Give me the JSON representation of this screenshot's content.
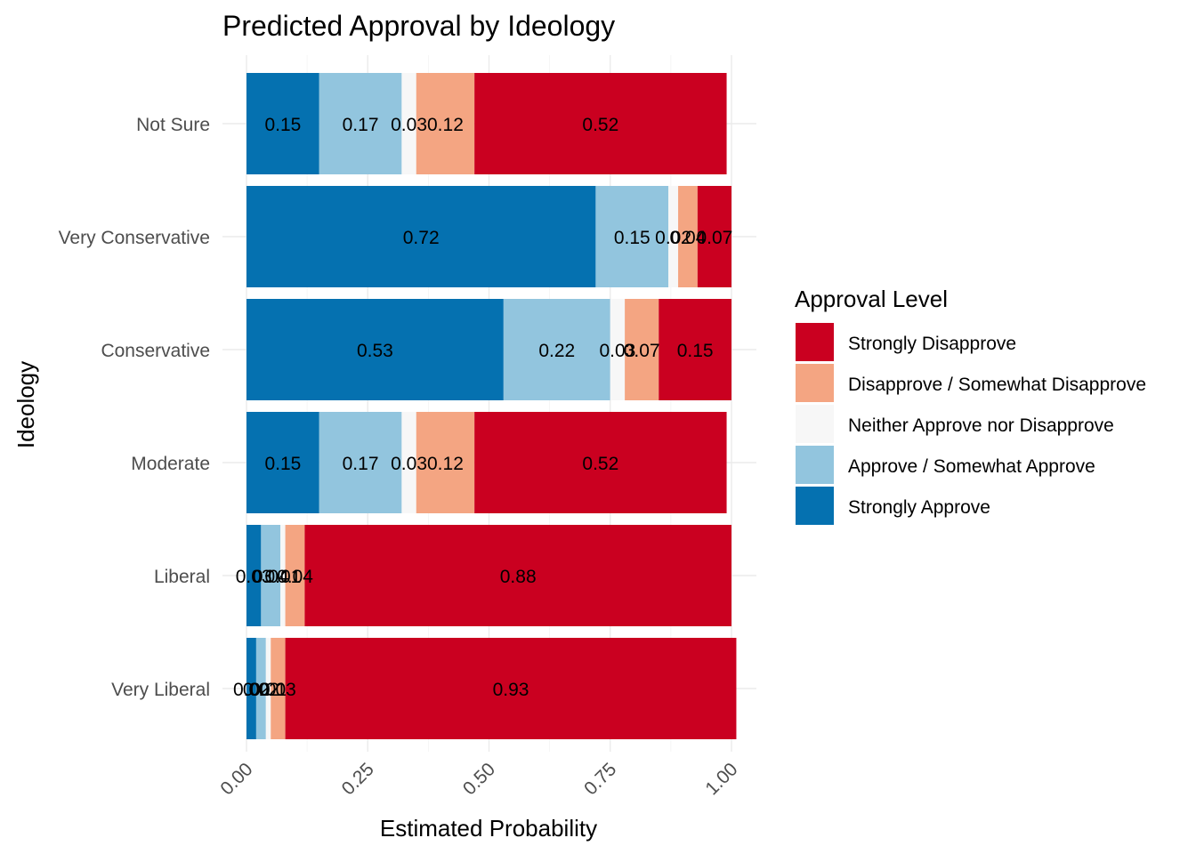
{
  "chart_data": {
    "type": "bar",
    "orientation": "horizontal",
    "stacked": true,
    "title": "Predicted Approval by Ideology",
    "xlabel": "Estimated Probability",
    "ylabel": "Ideology",
    "xlim": [
      0,
      1
    ],
    "x_ticks": [
      "0.00",
      "0.25",
      "0.50",
      "0.75",
      "1.00"
    ],
    "grid": true,
    "legend_position": "right",
    "categories": [
      "Not Sure",
      "Very Conservative",
      "Conservative",
      "Moderate",
      "Liberal",
      "Very Liberal"
    ],
    "series": [
      {
        "name": "Strongly Approve",
        "color": "#0571b0",
        "values": [
          0.15,
          0.72,
          0.53,
          0.15,
          0.03,
          0.02
        ],
        "labels": [
          "0.15",
          "0.72",
          "0.53",
          "0.15",
          "0.03",
          "0.02"
        ]
      },
      {
        "name": "Approve / Somewhat Approve",
        "color": "#92c5de",
        "values": [
          0.17,
          0.15,
          0.22,
          0.17,
          0.04,
          0.02
        ],
        "labels": [
          "0.17",
          "0.15",
          "0.22",
          "0.17",
          "0.04",
          "0.02"
        ]
      },
      {
        "name": "Neither Approve nor Disapprove",
        "color": "#f7f7f7",
        "values": [
          0.03,
          0.02,
          0.03,
          0.03,
          0.01,
          0.01
        ],
        "labels": [
          "0.03",
          "0.02",
          "0.03",
          "0.03",
          "0.01",
          "0.01"
        ]
      },
      {
        "name": "Disapprove / Somewhat Disapprove",
        "color": "#f4a582",
        "values": [
          0.12,
          0.04,
          0.07,
          0.12,
          0.04,
          0.03
        ],
        "labels": [
          "0.12",
          "0.04",
          "0.07",
          "0.12",
          "0.04",
          "0.03"
        ]
      },
      {
        "name": "Strongly Disapprove",
        "color": "#ca0020",
        "values": [
          0.52,
          0.07,
          0.15,
          0.52,
          0.88,
          0.93
        ],
        "labels": [
          "0.52",
          "0.07",
          "0.15",
          "0.52",
          "0.88",
          "0.93"
        ]
      }
    ],
    "legend": {
      "title": "Approval Level",
      "items": [
        "Strongly Disapprove",
        "Disapprove / Somewhat Disapprove",
        "Neither Approve nor Disapprove",
        "Approve / Somewhat Approve",
        "Strongly Approve"
      ]
    }
  }
}
